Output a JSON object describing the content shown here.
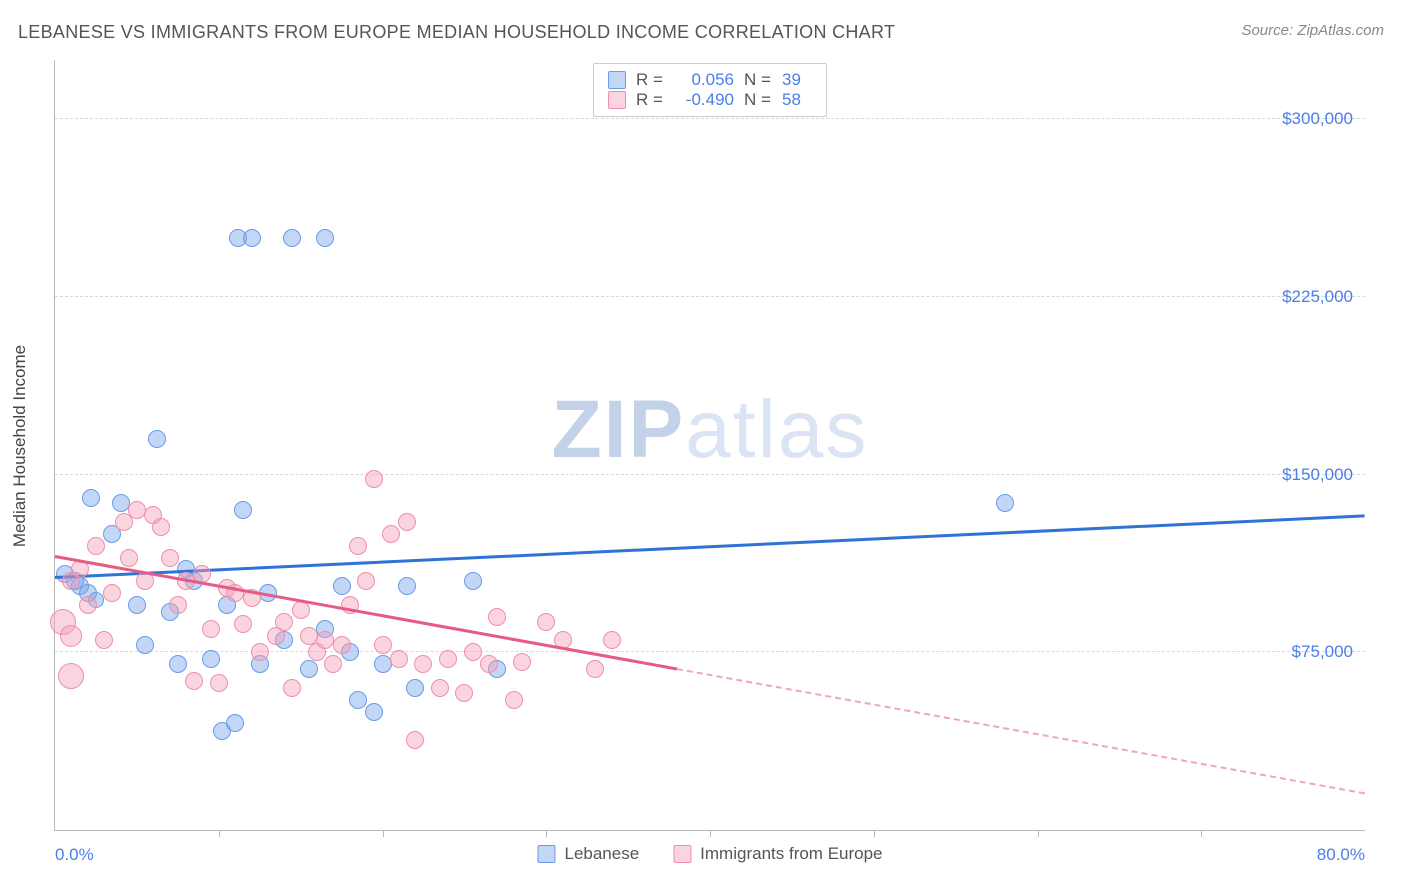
{
  "title": "LEBANESE VS IMMIGRANTS FROM EUROPE MEDIAN HOUSEHOLD INCOME CORRELATION CHART",
  "source": "Source: ZipAtlas.com",
  "ylabel": "Median Household Income",
  "watermark_zip": "ZIP",
  "watermark_atlas": "atlas",
  "chart": {
    "type": "scatter",
    "background_color": "#ffffff",
    "grid_color": "#d8d8d8",
    "axis_color": "#b8b8b8",
    "label_color": "#4a7ee8",
    "text_color": "#555555",
    "xlim": [
      0,
      80
    ],
    "ylim": [
      0,
      325000
    ],
    "xrange_labels": [
      "0.0%",
      "80.0%"
    ],
    "ytick_values": [
      75000,
      150000,
      225000,
      300000
    ],
    "ytick_labels": [
      "$75,000",
      "$150,000",
      "$225,000",
      "$300,000"
    ],
    "xtick_values": [
      10,
      20,
      30,
      40,
      50,
      60,
      70
    ]
  },
  "series": [
    {
      "name": "Lebanese",
      "color_fill": "rgba(120,165,235,0.45)",
      "color_stroke": "#6a9be8",
      "trend_color": "#2f73d6",
      "R": "0.056",
      "N": "39",
      "trend": {
        "x1": 0,
        "y1": 106000,
        "x2": 80,
        "y2": 132000,
        "dash": false,
        "solid_until_x": 80
      },
      "points": [
        {
          "x": 0.6,
          "y": 108000,
          "r": 9
        },
        {
          "x": 1.2,
          "y": 105000,
          "r": 9
        },
        {
          "x": 1.5,
          "y": 103000,
          "r": 9
        },
        {
          "x": 2.0,
          "y": 100000,
          "r": 9
        },
        {
          "x": 2.5,
          "y": 97000,
          "r": 8
        },
        {
          "x": 2.2,
          "y": 140000,
          "r": 9
        },
        {
          "x": 3.5,
          "y": 125000,
          "r": 9
        },
        {
          "x": 4.0,
          "y": 138000,
          "r": 9
        },
        {
          "x": 5.0,
          "y": 95000,
          "r": 9
        },
        {
          "x": 5.5,
          "y": 78000,
          "r": 9
        },
        {
          "x": 6.2,
          "y": 165000,
          "r": 9
        },
        {
          "x": 7.0,
          "y": 92000,
          "r": 9
        },
        {
          "x": 7.5,
          "y": 70000,
          "r": 9
        },
        {
          "x": 8.0,
          "y": 110000,
          "r": 9
        },
        {
          "x": 8.5,
          "y": 105000,
          "r": 9
        },
        {
          "x": 9.5,
          "y": 72000,
          "r": 9
        },
        {
          "x": 10.2,
          "y": 42000,
          "r": 9
        },
        {
          "x": 10.5,
          "y": 95000,
          "r": 9
        },
        {
          "x": 11.0,
          "y": 45000,
          "r": 9
        },
        {
          "x": 11.5,
          "y": 135000,
          "r": 9
        },
        {
          "x": 12.5,
          "y": 70000,
          "r": 9
        },
        {
          "x": 13.0,
          "y": 100000,
          "r": 9
        },
        {
          "x": 11.2,
          "y": 250000,
          "r": 9
        },
        {
          "x": 12.0,
          "y": 250000,
          "r": 9
        },
        {
          "x": 14.5,
          "y": 250000,
          "r": 9
        },
        {
          "x": 16.5,
          "y": 250000,
          "r": 9
        },
        {
          "x": 14.0,
          "y": 80000,
          "r": 9
        },
        {
          "x": 15.5,
          "y": 68000,
          "r": 9
        },
        {
          "x": 16.5,
          "y": 85000,
          "r": 9
        },
        {
          "x": 17.5,
          "y": 103000,
          "r": 9
        },
        {
          "x": 18.0,
          "y": 75000,
          "r": 9
        },
        {
          "x": 18.5,
          "y": 55000,
          "r": 9
        },
        {
          "x": 19.5,
          "y": 50000,
          "r": 9
        },
        {
          "x": 20.0,
          "y": 70000,
          "r": 9
        },
        {
          "x": 21.5,
          "y": 103000,
          "r": 9
        },
        {
          "x": 22.0,
          "y": 60000,
          "r": 9
        },
        {
          "x": 25.5,
          "y": 105000,
          "r": 9
        },
        {
          "x": 27.0,
          "y": 68000,
          "r": 9
        },
        {
          "x": 58.0,
          "y": 138000,
          "r": 9
        }
      ]
    },
    {
      "name": "Immigrants from Europe",
      "color_fill": "rgba(245,160,185,0.45)",
      "color_stroke": "#ef8fab",
      "trend_color": "#e65b82",
      "R": "-0.490",
      "N": "58",
      "trend": {
        "x1": 0,
        "y1": 115000,
        "x2": 80,
        "y2": 15000,
        "dash": true,
        "solid_until_x": 38
      },
      "points": [
        {
          "x": 0.5,
          "y": 88000,
          "r": 13
        },
        {
          "x": 1.0,
          "y": 82000,
          "r": 11
        },
        {
          "x": 1.0,
          "y": 65000,
          "r": 13
        },
        {
          "x": 1.0,
          "y": 105000,
          "r": 9
        },
        {
          "x": 1.5,
          "y": 110000,
          "r": 9
        },
        {
          "x": 2.0,
          "y": 95000,
          "r": 9
        },
        {
          "x": 2.5,
          "y": 120000,
          "r": 9
        },
        {
          "x": 3.0,
          "y": 80000,
          "r": 9
        },
        {
          "x": 3.5,
          "y": 100000,
          "r": 9
        },
        {
          "x": 4.2,
          "y": 130000,
          "r": 9
        },
        {
          "x": 4.5,
          "y": 115000,
          "r": 9
        },
        {
          "x": 5.0,
          "y": 135000,
          "r": 9
        },
        {
          "x": 5.5,
          "y": 105000,
          "r": 9
        },
        {
          "x": 6.0,
          "y": 133000,
          "r": 9
        },
        {
          "x": 6.5,
          "y": 128000,
          "r": 9
        },
        {
          "x": 7.0,
          "y": 115000,
          "r": 9
        },
        {
          "x": 7.5,
          "y": 95000,
          "r": 9
        },
        {
          "x": 8.0,
          "y": 105000,
          "r": 9
        },
        {
          "x": 8.5,
          "y": 63000,
          "r": 9
        },
        {
          "x": 9.0,
          "y": 108000,
          "r": 9
        },
        {
          "x": 9.5,
          "y": 85000,
          "r": 9
        },
        {
          "x": 10.0,
          "y": 62000,
          "r": 9
        },
        {
          "x": 10.5,
          "y": 102000,
          "r": 9
        },
        {
          "x": 11.0,
          "y": 100000,
          "r": 9
        },
        {
          "x": 11.5,
          "y": 87000,
          "r": 9
        },
        {
          "x": 12.0,
          "y": 98000,
          "r": 9
        },
        {
          "x": 12.5,
          "y": 75000,
          "r": 9
        },
        {
          "x": 13.5,
          "y": 82000,
          "r": 9
        },
        {
          "x": 14.0,
          "y": 88000,
          "r": 9
        },
        {
          "x": 14.5,
          "y": 60000,
          "r": 9
        },
        {
          "x": 15.0,
          "y": 93000,
          "r": 9
        },
        {
          "x": 15.5,
          "y": 82000,
          "r": 9
        },
        {
          "x": 16.0,
          "y": 75000,
          "r": 9
        },
        {
          "x": 16.5,
          "y": 80000,
          "r": 9
        },
        {
          "x": 17.0,
          "y": 70000,
          "r": 9
        },
        {
          "x": 17.5,
          "y": 78000,
          "r": 9
        },
        {
          "x": 18.0,
          "y": 95000,
          "r": 9
        },
        {
          "x": 18.5,
          "y": 120000,
          "r": 9
        },
        {
          "x": 19.0,
          "y": 105000,
          "r": 9
        },
        {
          "x": 19.5,
          "y": 148000,
          "r": 9
        },
        {
          "x": 20.0,
          "y": 78000,
          "r": 9
        },
        {
          "x": 20.5,
          "y": 125000,
          "r": 9
        },
        {
          "x": 21.0,
          "y": 72000,
          "r": 9
        },
        {
          "x": 21.5,
          "y": 130000,
          "r": 9
        },
        {
          "x": 22.0,
          "y": 38000,
          "r": 9
        },
        {
          "x": 22.5,
          "y": 70000,
          "r": 9
        },
        {
          "x": 23.5,
          "y": 60000,
          "r": 9
        },
        {
          "x": 24.0,
          "y": 72000,
          "r": 9
        },
        {
          "x": 25.0,
          "y": 58000,
          "r": 9
        },
        {
          "x": 25.5,
          "y": 75000,
          "r": 9
        },
        {
          "x": 26.5,
          "y": 70000,
          "r": 9
        },
        {
          "x": 27.0,
          "y": 90000,
          "r": 9
        },
        {
          "x": 28.0,
          "y": 55000,
          "r": 9
        },
        {
          "x": 28.5,
          "y": 71000,
          "r": 9
        },
        {
          "x": 30.0,
          "y": 88000,
          "r": 9
        },
        {
          "x": 31.0,
          "y": 80000,
          "r": 9
        },
        {
          "x": 33.0,
          "y": 68000,
          "r": 9
        },
        {
          "x": 34.0,
          "y": 80000,
          "r": 9
        }
      ]
    }
  ],
  "legend_bottom": [
    {
      "label": "Lebanese",
      "series": 0
    },
    {
      "label": "Immigrants from Europe",
      "series": 1
    }
  ]
}
